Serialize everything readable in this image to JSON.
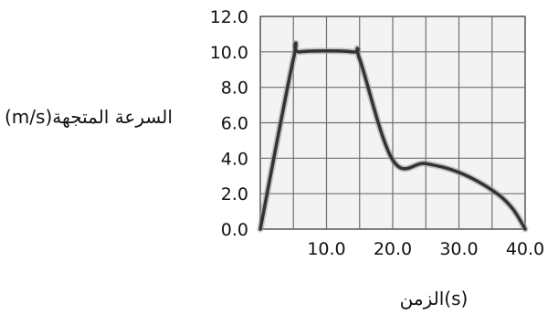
{
  "chart_data": {
    "type": "line",
    "xlabel": "(s)الزمن",
    "ylabel": "(m/s)السرعة المتجهة",
    "xlim": [
      0,
      40
    ],
    "ylim": [
      0,
      12
    ],
    "x_ticks": [
      "10.0",
      "20.0",
      "30.0",
      "40.0"
    ],
    "y_ticks": [
      "0.0",
      "2.0",
      "4.0",
      "6.0",
      "8.0",
      "10.0",
      "12.0"
    ],
    "grid": true,
    "series": [
      {
        "x": [
          0,
          5,
          6,
          14,
          15,
          20,
          25,
          30,
          35,
          38,
          40
        ],
        "y": [
          0,
          9.6,
          10,
          10,
          9.6,
          3.9,
          3.7,
          3.2,
          2.2,
          1.2,
          0
        ],
        "color": "#333333"
      }
    ]
  }
}
